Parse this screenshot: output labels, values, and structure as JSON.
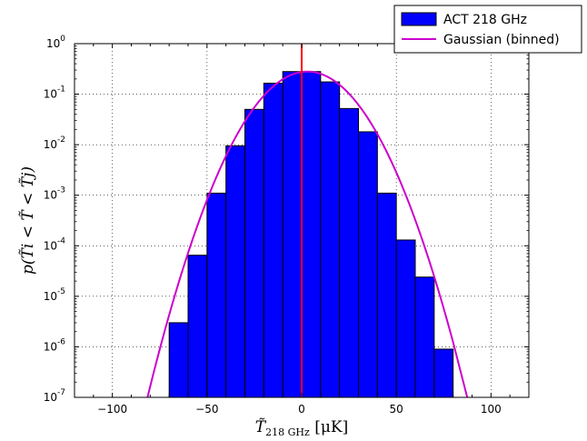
{
  "chart_data": {
    "type": "bar",
    "x_scale": "linear",
    "y_scale": "log",
    "xlim": [
      -120,
      120
    ],
    "ylim_exponents": [
      -7,
      0
    ],
    "xticks": [
      -100,
      -50,
      0,
      50,
      100
    ],
    "xtick_labels": [
      "−100",
      "−50",
      "0",
      "50",
      "100"
    ],
    "ytick_exponents": [
      -7,
      -6,
      -5,
      -4,
      -3,
      -2,
      -1,
      0
    ],
    "grid": true,
    "xlabel": {
      "base": "T̃",
      "sub": "218 GHz",
      "unit": "[μK]"
    },
    "ylabel": "p(T̃i < T̃ < T̃j)",
    "legend": {
      "placement": "top-right",
      "entries": [
        {
          "label": "ACT 218 GHz",
          "color": "#0000ff",
          "kind": "patch"
        },
        {
          "label": "Gaussian (binned)",
          "color": "#cc00cc",
          "kind": "line"
        }
      ]
    },
    "bin_width": 10,
    "bins": [
      {
        "center": -65,
        "value": 3e-06
      },
      {
        "center": -55,
        "value": 6.5e-05
      },
      {
        "center": -45,
        "value": 0.0011
      },
      {
        "center": -35,
        "value": 0.0095
      },
      {
        "center": -25,
        "value": 0.05
      },
      {
        "center": -15,
        "value": 0.165
      },
      {
        "center": -5,
        "value": 0.28
      },
      {
        "center": 5,
        "value": 0.28
      },
      {
        "center": 15,
        "value": 0.175
      },
      {
        "center": 25,
        "value": 0.052
      },
      {
        "center": 35,
        "value": 0.018
      },
      {
        "center": 45,
        "value": 0.0011
      },
      {
        "center": 55,
        "value": 0.00013
      },
      {
        "center": 65,
        "value": 2.4e-05
      },
      {
        "center": 75,
        "value": 9e-07
      }
    ],
    "gaussian": {
      "mean": 3,
      "sigma": 15.5,
      "peak": 0.28
    },
    "vertical_line": {
      "x": 0,
      "color": "#ff0000"
    },
    "colors": {
      "bar": "#0000ff",
      "gaussian": "#cc00cc",
      "vline": "#ff0000"
    }
  }
}
